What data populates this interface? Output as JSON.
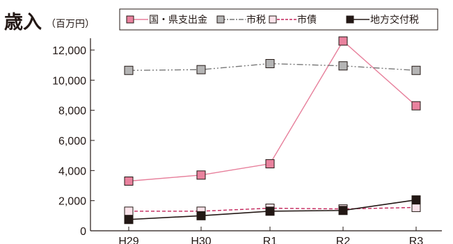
{
  "title": "歳入",
  "unit": "（百万円）",
  "chart_data": {
    "type": "line",
    "title": "歳入",
    "unit": "（百万円）",
    "categories": [
      "H29",
      "H30",
      "R1",
      "R2",
      "R3"
    ],
    "yticks": [
      "0",
      "2,000",
      "4,000",
      "6,000",
      "8,000",
      "10,000",
      "12,000"
    ],
    "ylim": [
      0,
      12000
    ],
    "grid": false,
    "legend_position": "top",
    "series": [
      {
        "name": "国・県支出金",
        "values": [
          3300,
          3700,
          4450,
          12600,
          8300
        ],
        "color": "#e77f9b",
        "marker_fill": "#e9829e",
        "line_style": "solid"
      },
      {
        "name": "市税",
        "values": [
          10650,
          10700,
          11100,
          10950,
          10650
        ],
        "color": "#777777",
        "marker_fill": "#b5b5b5",
        "line_style": "dash-dot-dot"
      },
      {
        "name": "市債",
        "values": [
          1300,
          1300,
          1500,
          1450,
          1550
        ],
        "color": "#c3245a",
        "marker_fill": "#fbe3ea",
        "line_style": "dashed"
      },
      {
        "name": "地方交付税",
        "values": [
          750,
          1000,
          1300,
          1350,
          2050
        ],
        "color": "#231815",
        "marker_fill": "#231815",
        "line_style": "solid"
      }
    ]
  }
}
